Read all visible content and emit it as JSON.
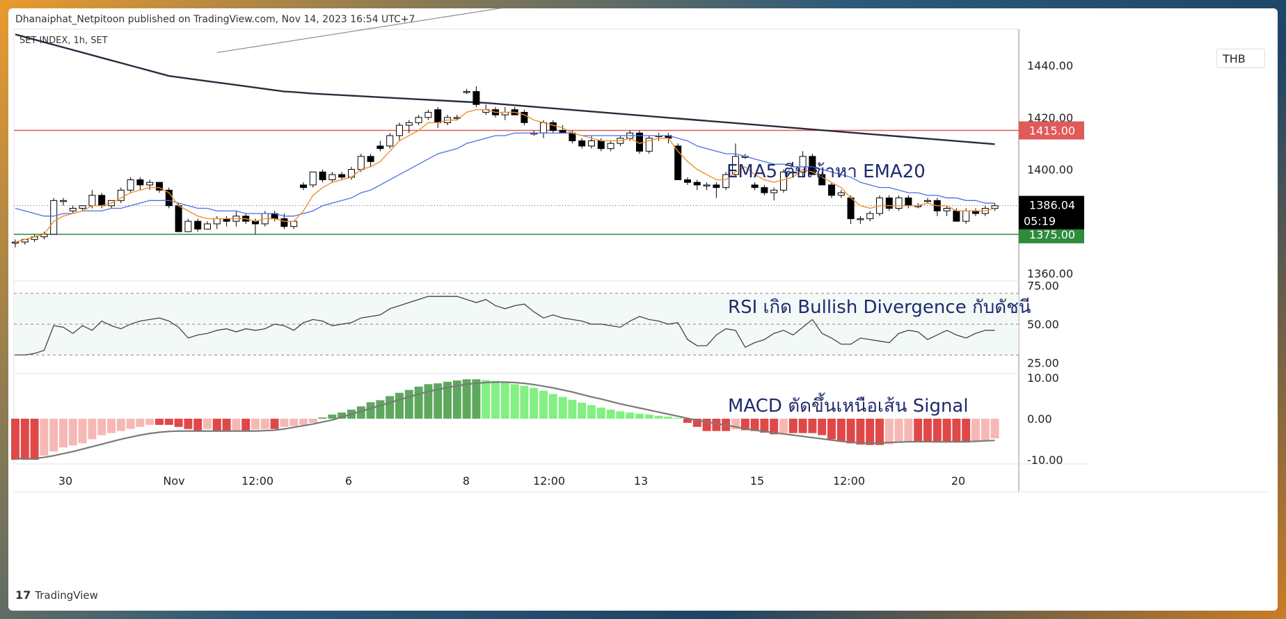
{
  "header": {
    "published": "Dhanaiphat_Netpitoon published on TradingView.com, Nov 14, 2023 16:54 UTC+7",
    "symbol": "SET INDEX, 1h, SET",
    "currency": "THB"
  },
  "footer": {
    "brand": "TradingView",
    "logo_text": "17"
  },
  "colors": {
    "up": "#ffffff",
    "down": "#000000",
    "ema5": "#f0902c",
    "ema20": "#4c6ee0",
    "ema200": "#2b2b3e",
    "trendline": "#8a8a8a",
    "resistance": "#e05a5a",
    "support": "#2e8b3c",
    "rsi": "#444444",
    "macd_signal": "#7a7a7a",
    "hist_pos_strong": "#5ea85e",
    "hist_pos_weak": "#82f082",
    "hist_neg_strong": "#e04848",
    "hist_neg_weak": "#f6b8b4",
    "annotation": "#1e2a6e"
  },
  "chart_data": {
    "type": "candlestick",
    "title": "SET INDEX, 1h, SET",
    "x_labels": [
      "30",
      "Nov",
      "12:00",
      "6",
      "8",
      "12:00",
      "13",
      "15",
      "12:00",
      "20"
    ],
    "price_axis": {
      "ticks": [
        "1440.00",
        "1420.00",
        "1400.00",
        "1360.00"
      ],
      "ylim": [
        1357,
        1454
      ]
    },
    "levels": [
      {
        "name": "resistance",
        "value": 1415,
        "label": "1415.00"
      },
      {
        "name": "support",
        "value": 1375,
        "label": "1375.00"
      }
    ],
    "last_price": {
      "value": 1386.04,
      "label": "1386.04",
      "countdown": "05:19"
    },
    "candles": [
      [
        1372,
        1373,
        1370,
        1372
      ],
      [
        1372,
        1373,
        1371,
        1373
      ],
      [
        1373,
        1375,
        1372,
        1374
      ],
      [
        1374,
        1376,
        1373,
        1375
      ],
      [
        1375,
        1389,
        1375,
        1388
      ],
      [
        1388,
        1389,
        1386,
        1388
      ],
      [
        1384,
        1386,
        1383,
        1385
      ],
      [
        1385,
        1386,
        1384,
        1386
      ],
      [
        1386,
        1392,
        1385,
        1390
      ],
      [
        1390,
        1391,
        1385,
        1386
      ],
      [
        1386,
        1388,
        1385,
        1388
      ],
      [
        1388,
        1393,
        1387,
        1392
      ],
      [
        1392,
        1397,
        1391,
        1396
      ],
      [
        1396,
        1397,
        1392,
        1394
      ],
      [
        1394,
        1396,
        1392,
        1395
      ],
      [
        1395,
        1395,
        1391,
        1392
      ],
      [
        1392,
        1393,
        1385,
        1386
      ],
      [
        1386,
        1387,
        1376,
        1376
      ],
      [
        1376,
        1381,
        1376,
        1380
      ],
      [
        1380,
        1381,
        1376,
        1377
      ],
      [
        1377,
        1380,
        1377,
        1379
      ],
      [
        1379,
        1382,
        1377,
        1381
      ],
      [
        1381,
        1382,
        1378,
        1380
      ],
      [
        1380,
        1384,
        1378,
        1382
      ],
      [
        1382,
        1383,
        1379,
        1380
      ],
      [
        1380,
        1381,
        1375,
        1379
      ],
      [
        1379,
        1384,
        1378,
        1383
      ],
      [
        1383,
        1384,
        1380,
        1381
      ],
      [
        1381,
        1383,
        1377,
        1378
      ],
      [
        1378,
        1380,
        1377,
        1380
      ],
      [
        1394,
        1395,
        1392,
        1393
      ],
      [
        1394,
        1399,
        1393,
        1399
      ],
      [
        1399,
        1400,
        1395,
        1396
      ],
      [
        1396,
        1399,
        1395,
        1398
      ],
      [
        1398,
        1399,
        1396,
        1397
      ],
      [
        1397,
        1401,
        1396,
        1400
      ],
      [
        1400,
        1406,
        1399,
        1405
      ],
      [
        1405,
        1406,
        1401,
        1403
      ],
      [
        1409,
        1411,
        1407,
        1408
      ],
      [
        1409,
        1414,
        1408,
        1413
      ],
      [
        1413,
        1418,
        1411,
        1417
      ],
      [
        1417,
        1419,
        1414,
        1418
      ],
      [
        1418,
        1421,
        1417,
        1420
      ],
      [
        1420,
        1423,
        1419,
        1422
      ],
      [
        1423,
        1424,
        1416,
        1418
      ],
      [
        1418,
        1421,
        1417,
        1420
      ],
      [
        1420,
        1421,
        1419,
        1420
      ],
      [
        1430,
        1431,
        1429,
        1430
      ],
      [
        1430,
        1432,
        1424,
        1425
      ],
      [
        1422,
        1425,
        1421,
        1423
      ],
      [
        1423,
        1424,
        1420,
        1421
      ],
      [
        1421,
        1424,
        1419,
        1422
      ],
      [
        1423,
        1424,
        1421,
        1421
      ],
      [
        1422,
        1423,
        1417,
        1418
      ],
      [
        1414,
        1415,
        1413,
        1414
      ],
      [
        1414,
        1419,
        1412,
        1418
      ],
      [
        1418,
        1419,
        1414,
        1415
      ],
      [
        1415,
        1417,
        1414,
        1414
      ],
      [
        1414,
        1415,
        1410,
        1411
      ],
      [
        1411,
        1412,
        1408,
        1409
      ],
      [
        1409,
        1413,
        1408,
        1411
      ],
      [
        1411,
        1412,
        1407,
        1408
      ],
      [
        1408,
        1411,
        1407,
        1410
      ],
      [
        1410,
        1413,
        1409,
        1412
      ],
      [
        1412,
        1415,
        1411,
        1414
      ],
      [
        1414,
        1415,
        1406,
        1407
      ],
      [
        1407,
        1413,
        1406,
        1412
      ],
      [
        1413,
        1414,
        1411,
        1413
      ],
      [
        1413,
        1414,
        1410,
        1412
      ],
      [
        1409,
        1410,
        1396,
        1396
      ],
      [
        1396,
        1397,
        1394,
        1395
      ],
      [
        1395,
        1396,
        1392,
        1394
      ],
      [
        1394,
        1395,
        1392,
        1394
      ],
      [
        1394,
        1395,
        1389,
        1393
      ],
      [
        1393,
        1399,
        1392,
        1398
      ],
      [
        1398,
        1410,
        1397,
        1405
      ],
      [
        1405,
        1406,
        1404,
        1405
      ],
      [
        1394,
        1395,
        1392,
        1393
      ],
      [
        1393,
        1394,
        1390,
        1391
      ],
      [
        1391,
        1393,
        1388,
        1392
      ],
      [
        1392,
        1400,
        1391,
        1399
      ],
      [
        1399,
        1400,
        1398,
        1399
      ],
      [
        1399,
        1407,
        1397,
        1405
      ],
      [
        1405,
        1406,
        1398,
        1398
      ],
      [
        1398,
        1399,
        1394,
        1394
      ],
      [
        1394,
        1395,
        1389,
        1390
      ],
      [
        1390,
        1392,
        1389,
        1391
      ],
      [
        1389,
        1390,
        1379,
        1381
      ],
      [
        1381,
        1382,
        1379,
        1381
      ],
      [
        1381,
        1384,
        1380,
        1383
      ],
      [
        1383,
        1390,
        1382,
        1389
      ],
      [
        1389,
        1390,
        1384,
        1385
      ],
      [
        1385,
        1390,
        1384,
        1389
      ],
      [
        1389,
        1390,
        1385,
        1386
      ],
      [
        1386,
        1387,
        1385,
        1386
      ],
      [
        1388,
        1389,
        1387,
        1388
      ],
      [
        1388,
        1389,
        1382,
        1384
      ],
      [
        1384,
        1386,
        1382,
        1385
      ],
      [
        1384,
        1385,
        1380,
        1380
      ],
      [
        1380,
        1385,
        1379,
        1384
      ],
      [
        1384,
        1385,
        1382,
        1383
      ],
      [
        1383,
        1386,
        1382,
        1385
      ],
      [
        1385,
        1387,
        1384,
        1386
      ]
    ],
    "ema5": [
      1372,
      1373,
      1374,
      1375,
      1380,
      1382,
      1383,
      1384,
      1386,
      1386,
      1387,
      1389,
      1391,
      1392,
      1393,
      1393,
      1391,
      1386,
      1384,
      1382,
      1381,
      1381,
      1381,
      1381,
      1381,
      1380,
      1381,
      1381,
      1380,
      1380,
      1384,
      1390,
      1393,
      1395,
      1396,
      1397,
      1400,
      1401,
      1403,
      1407,
      1411,
      1413,
      1415,
      1418,
      1418,
      1419,
      1419,
      1422,
      1423,
      1423,
      1422,
      1422,
      1422,
      1421,
      1419,
      1418,
      1417,
      1416,
      1414,
      1413,
      1412,
      1411,
      1411,
      1411,
      1412,
      1410,
      1411,
      1412,
      1412,
      1407,
      1403,
      1400,
      1398,
      1396,
      1396,
      1399,
      1401,
      1398,
      1396,
      1395,
      1396,
      1397,
      1400,
      1399,
      1397,
      1395,
      1393,
      1389,
      1386,
      1385,
      1386,
      1386,
      1386,
      1386,
      1386,
      1387,
      1386,
      1386,
      1384,
      1384,
      1384,
      1384,
      1385
    ],
    "ema20": [
      1385,
      1384,
      1383,
      1382,
      1382,
      1383,
      1383,
      1384,
      1384,
      1384,
      1385,
      1385,
      1386,
      1387,
      1388,
      1388,
      1388,
      1387,
      1386,
      1385,
      1385,
      1384,
      1384,
      1384,
      1383,
      1383,
      1383,
      1383,
      1382,
      1382,
      1383,
      1384,
      1386,
      1387,
      1388,
      1389,
      1391,
      1392,
      1394,
      1396,
      1398,
      1400,
      1402,
      1404,
      1406,
      1407,
      1408,
      1410,
      1411,
      1412,
      1413,
      1413,
      1414,
      1414,
      1414,
      1414,
      1414,
      1414,
      1414,
      1413,
      1413,
      1413,
      1413,
      1413,
      1413,
      1413,
      1413,
      1413,
      1413,
      1412,
      1411,
      1409,
      1408,
      1407,
      1406,
      1406,
      1405,
      1404,
      1403,
      1402,
      1402,
      1401,
      1401,
      1401,
      1400,
      1399,
      1398,
      1397,
      1395,
      1394,
      1393,
      1393,
      1392,
      1391,
      1391,
      1390,
      1390,
      1389,
      1389,
      1388,
      1388,
      1387,
      1387
    ],
    "ema200": [
      1452,
      1451,
      1450,
      1449,
      1448,
      1447,
      1446,
      1445,
      1444,
      1443,
      1442,
      1441,
      1440,
      1439,
      1438,
      1437,
      1436,
      1435.5,
      1435,
      1434.5,
      1434,
      1433.5,
      1433,
      1432.5,
      1432,
      1431.5,
      1431,
      1430.5,
      1430,
      1429.8,
      1429.5,
      1429.2,
      1429,
      1428.8,
      1428.6,
      1428.4,
      1428.2,
      1428,
      1427.8,
      1427.6,
      1427.4,
      1427.2,
      1427,
      1426.8,
      1426.6,
      1426.4,
      1426.2,
      1426,
      1425.8,
      1425.6,
      1425.3,
      1425,
      1424.7,
      1424.4,
      1424.1,
      1423.8,
      1423.5,
      1423.2,
      1422.9,
      1422.6,
      1422.3,
      1422,
      1421.7,
      1421.4,
      1421.1,
      1420.8,
      1420.5,
      1420.2,
      1419.9,
      1419.6,
      1419.3,
      1419,
      1418.7,
      1418.4,
      1418.1,
      1417.8,
      1417.5,
      1417.2,
      1416.9,
      1416.6,
      1416.3,
      1416,
      1415.7,
      1415.4,
      1415.1,
      1414.8,
      1414.5,
      1414.2,
      1413.9,
      1413.6,
      1413.3,
      1413,
      1412.7,
      1412.4,
      1412.1,
      1411.8,
      1411.5,
      1411.2,
      1410.9,
      1410.6,
      1410.3,
      1410,
      1409.7
    ],
    "trendline": {
      "from": [
        1432,
        1445
      ],
      "to": [
        1380,
        1490
      ]
    },
    "rsi": {
      "ticks": [
        "75.00",
        "50.00",
        "25.00"
      ],
      "bands": [
        30,
        50,
        70
      ],
      "ylim": [
        18,
        78
      ],
      "values": [
        30,
        30,
        31,
        33,
        49,
        48,
        44,
        49,
        46,
        52,
        49,
        47,
        50,
        52,
        53,
        54,
        52,
        48,
        41,
        43,
        44,
        46,
        47,
        45,
        47,
        46,
        47,
        50,
        49,
        46,
        51,
        53,
        52,
        49,
        50,
        51,
        54,
        55,
        56,
        60,
        62,
        64,
        66,
        68,
        68,
        68,
        68,
        66,
        64,
        66,
        62,
        60,
        62,
        63,
        58,
        54,
        56,
        54,
        53,
        52,
        50,
        50,
        49,
        48,
        52,
        55,
        53,
        52,
        50,
        51,
        40,
        36,
        36,
        43,
        47,
        46,
        35,
        38,
        40,
        44,
        46,
        43,
        48,
        53,
        44,
        41,
        37,
        37,
        41,
        40,
        39,
        38,
        44,
        46,
        45,
        40,
        43,
        46,
        43,
        41,
        44,
        46,
        46
      ]
    },
    "macd": {
      "ticks": [
        "10.00",
        "0.00",
        "-10.00"
      ],
      "ylim": [
        -11,
        11
      ],
      "histogram": [
        -10,
        -10,
        -10,
        -9,
        -8,
        -7,
        -6.5,
        -6,
        -5,
        -4,
        -3.5,
        -3,
        -2.5,
        -2,
        -1.5,
        -1.5,
        -1.5,
        -2,
        -2.5,
        -3,
        -2.5,
        -3,
        -3,
        -2.8,
        -3,
        -2.6,
        -2.5,
        -2.5,
        -2,
        -1.8,
        -1.5,
        -1,
        0.3,
        1,
        1.5,
        2.2,
        3,
        4,
        4.5,
        5.5,
        6.3,
        7,
        7.8,
        8.4,
        8.6,
        9,
        9.3,
        9.6,
        9.6,
        9.4,
        9.2,
        8.8,
        8.4,
        8,
        7.5,
        6.8,
        6,
        5.3,
        4.6,
        3.9,
        3.3,
        2.7,
        2.2,
        1.8,
        1.5,
        1.2,
        1,
        0.7,
        0.5,
        0.2,
        -1,
        -2,
        -3,
        -3,
        -3,
        -2.6,
        -2.8,
        -3,
        -3.4,
        -3.8,
        -3.5,
        -3.5,
        -3.5,
        -3.5,
        -4,
        -5,
        -5.6,
        -6,
        -6.3,
        -6.4,
        -6.4,
        -6.2,
        -5.8,
        -5.5,
        -5.5,
        -5.6,
        -5.8,
        -5.8,
        -5.8,
        -5.8,
        -5.5,
        -5.2,
        -4.8
      ],
      "signal": [
        -9.5,
        -9.8,
        -9.7,
        -9.4,
        -9,
        -8.5,
        -8,
        -7.4,
        -6.8,
        -6.2,
        -5.6,
        -5,
        -4.5,
        -4,
        -3.6,
        -3.3,
        -3.1,
        -3,
        -3,
        -3,
        -3,
        -3,
        -3,
        -3,
        -3,
        -3,
        -2.9,
        -2.8,
        -2.5,
        -2.1,
        -1.7,
        -1.3,
        -0.8,
        -0.3,
        0.4,
        1.1,
        1.8,
        2.5,
        3.2,
        3.9,
        4.6,
        5.3,
        6,
        6.6,
        7.1,
        7.6,
        8,
        8.4,
        8.6,
        8.8,
        8.9,
        8.9,
        8.8,
        8.6,
        8.3,
        7.9,
        7.5,
        7,
        6.5,
        5.9,
        5.3,
        4.8,
        4.2,
        3.6,
        3.1,
        2.6,
        2.1,
        1.6,
        1.1,
        0.6,
        0.1,
        -0.4,
        -0.8,
        -1.2,
        -1.6,
        -2,
        -2.4,
        -2.8,
        -3.1,
        -3.4,
        -3.7,
        -4,
        -4.3,
        -4.6,
        -4.9,
        -5.2,
        -5.5,
        -5.7,
        -5.9,
        -6,
        -5.9,
        -5.8,
        -5.7,
        -5.6,
        -5.6,
        -5.6,
        -5.6,
        -5.6,
        -5.6,
        -5.6,
        -5.5,
        -5.4,
        -5.3
      ]
    }
  },
  "annotations": {
    "ema": "EMA5 ตีบเข้าหา EMA20",
    "rsi": "RSI เกิด Bullish Divergence กับดัชนี",
    "macd": "MACD ตัดขึ้นเหนือเส้น Signal"
  }
}
